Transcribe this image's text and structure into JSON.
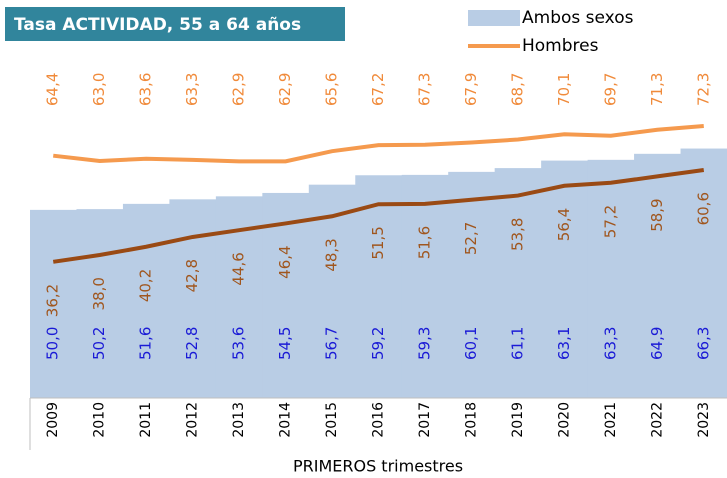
{
  "chart_data": {
    "type": "area_line",
    "title": "Tasa ACTIVIDAD, 55 a 64 años",
    "x_label": "PRIMEROS trimestres",
    "categories": [
      "2009",
      "2010",
      "2011",
      "2012",
      "2013",
      "2014",
      "2015",
      "2016",
      "2017",
      "2018",
      "2019",
      "2020",
      "2021",
      "2022",
      "2023"
    ],
    "ylim": [
      0,
      80
    ],
    "series": [
      {
        "name": "Ambos sexos",
        "color": "#b9cde5",
        "label_color": "#1a1ad6",
        "kind": "area",
        "values": [
          50.0,
          50.2,
          51.6,
          52.8,
          53.6,
          54.5,
          56.7,
          59.2,
          59.3,
          60.1,
          61.1,
          63.1,
          63.3,
          64.9,
          66.3
        ],
        "value_labels": [
          "50,0",
          "50,2",
          "51,6",
          "52,8",
          "53,6",
          "54,5",
          "56,7",
          "59,2",
          "59,3",
          "60,1",
          "61,1",
          "63,1",
          "63,3",
          "64,9",
          "66,3"
        ]
      },
      {
        "name": "Hombres",
        "color": "#f59a4e",
        "label_color": "#f08a3a",
        "kind": "line",
        "values": [
          64.4,
          63.0,
          63.6,
          63.3,
          62.9,
          62.9,
          65.6,
          67.2,
          67.3,
          67.9,
          68.7,
          70.1,
          69.7,
          71.3,
          72.3
        ],
        "value_labels": [
          "64,4",
          "63,0",
          "63,6",
          "63,3",
          "62,9",
          "62,9",
          "65,6",
          "67,2",
          "67,3",
          "67,9",
          "68,7",
          "70,1",
          "69,7",
          "71,3",
          "72,3"
        ]
      },
      {
        "color": "#9a4a14",
        "label_color": "#a0561e",
        "kind": "line",
        "values": [
          36.2,
          38.0,
          40.2,
          42.8,
          44.6,
          46.4,
          48.3,
          51.5,
          51.6,
          52.7,
          53.8,
          56.4,
          57.2,
          58.9,
          60.6
        ],
        "value_labels": [
          "36,2",
          "38,0",
          "40,2",
          "42,8",
          "44,6",
          "46,4",
          "48,3",
          "51,5",
          "51,6",
          "52,7",
          "53,8",
          "56,4",
          "57,2",
          "58,9",
          "60,6"
        ]
      }
    ]
  }
}
